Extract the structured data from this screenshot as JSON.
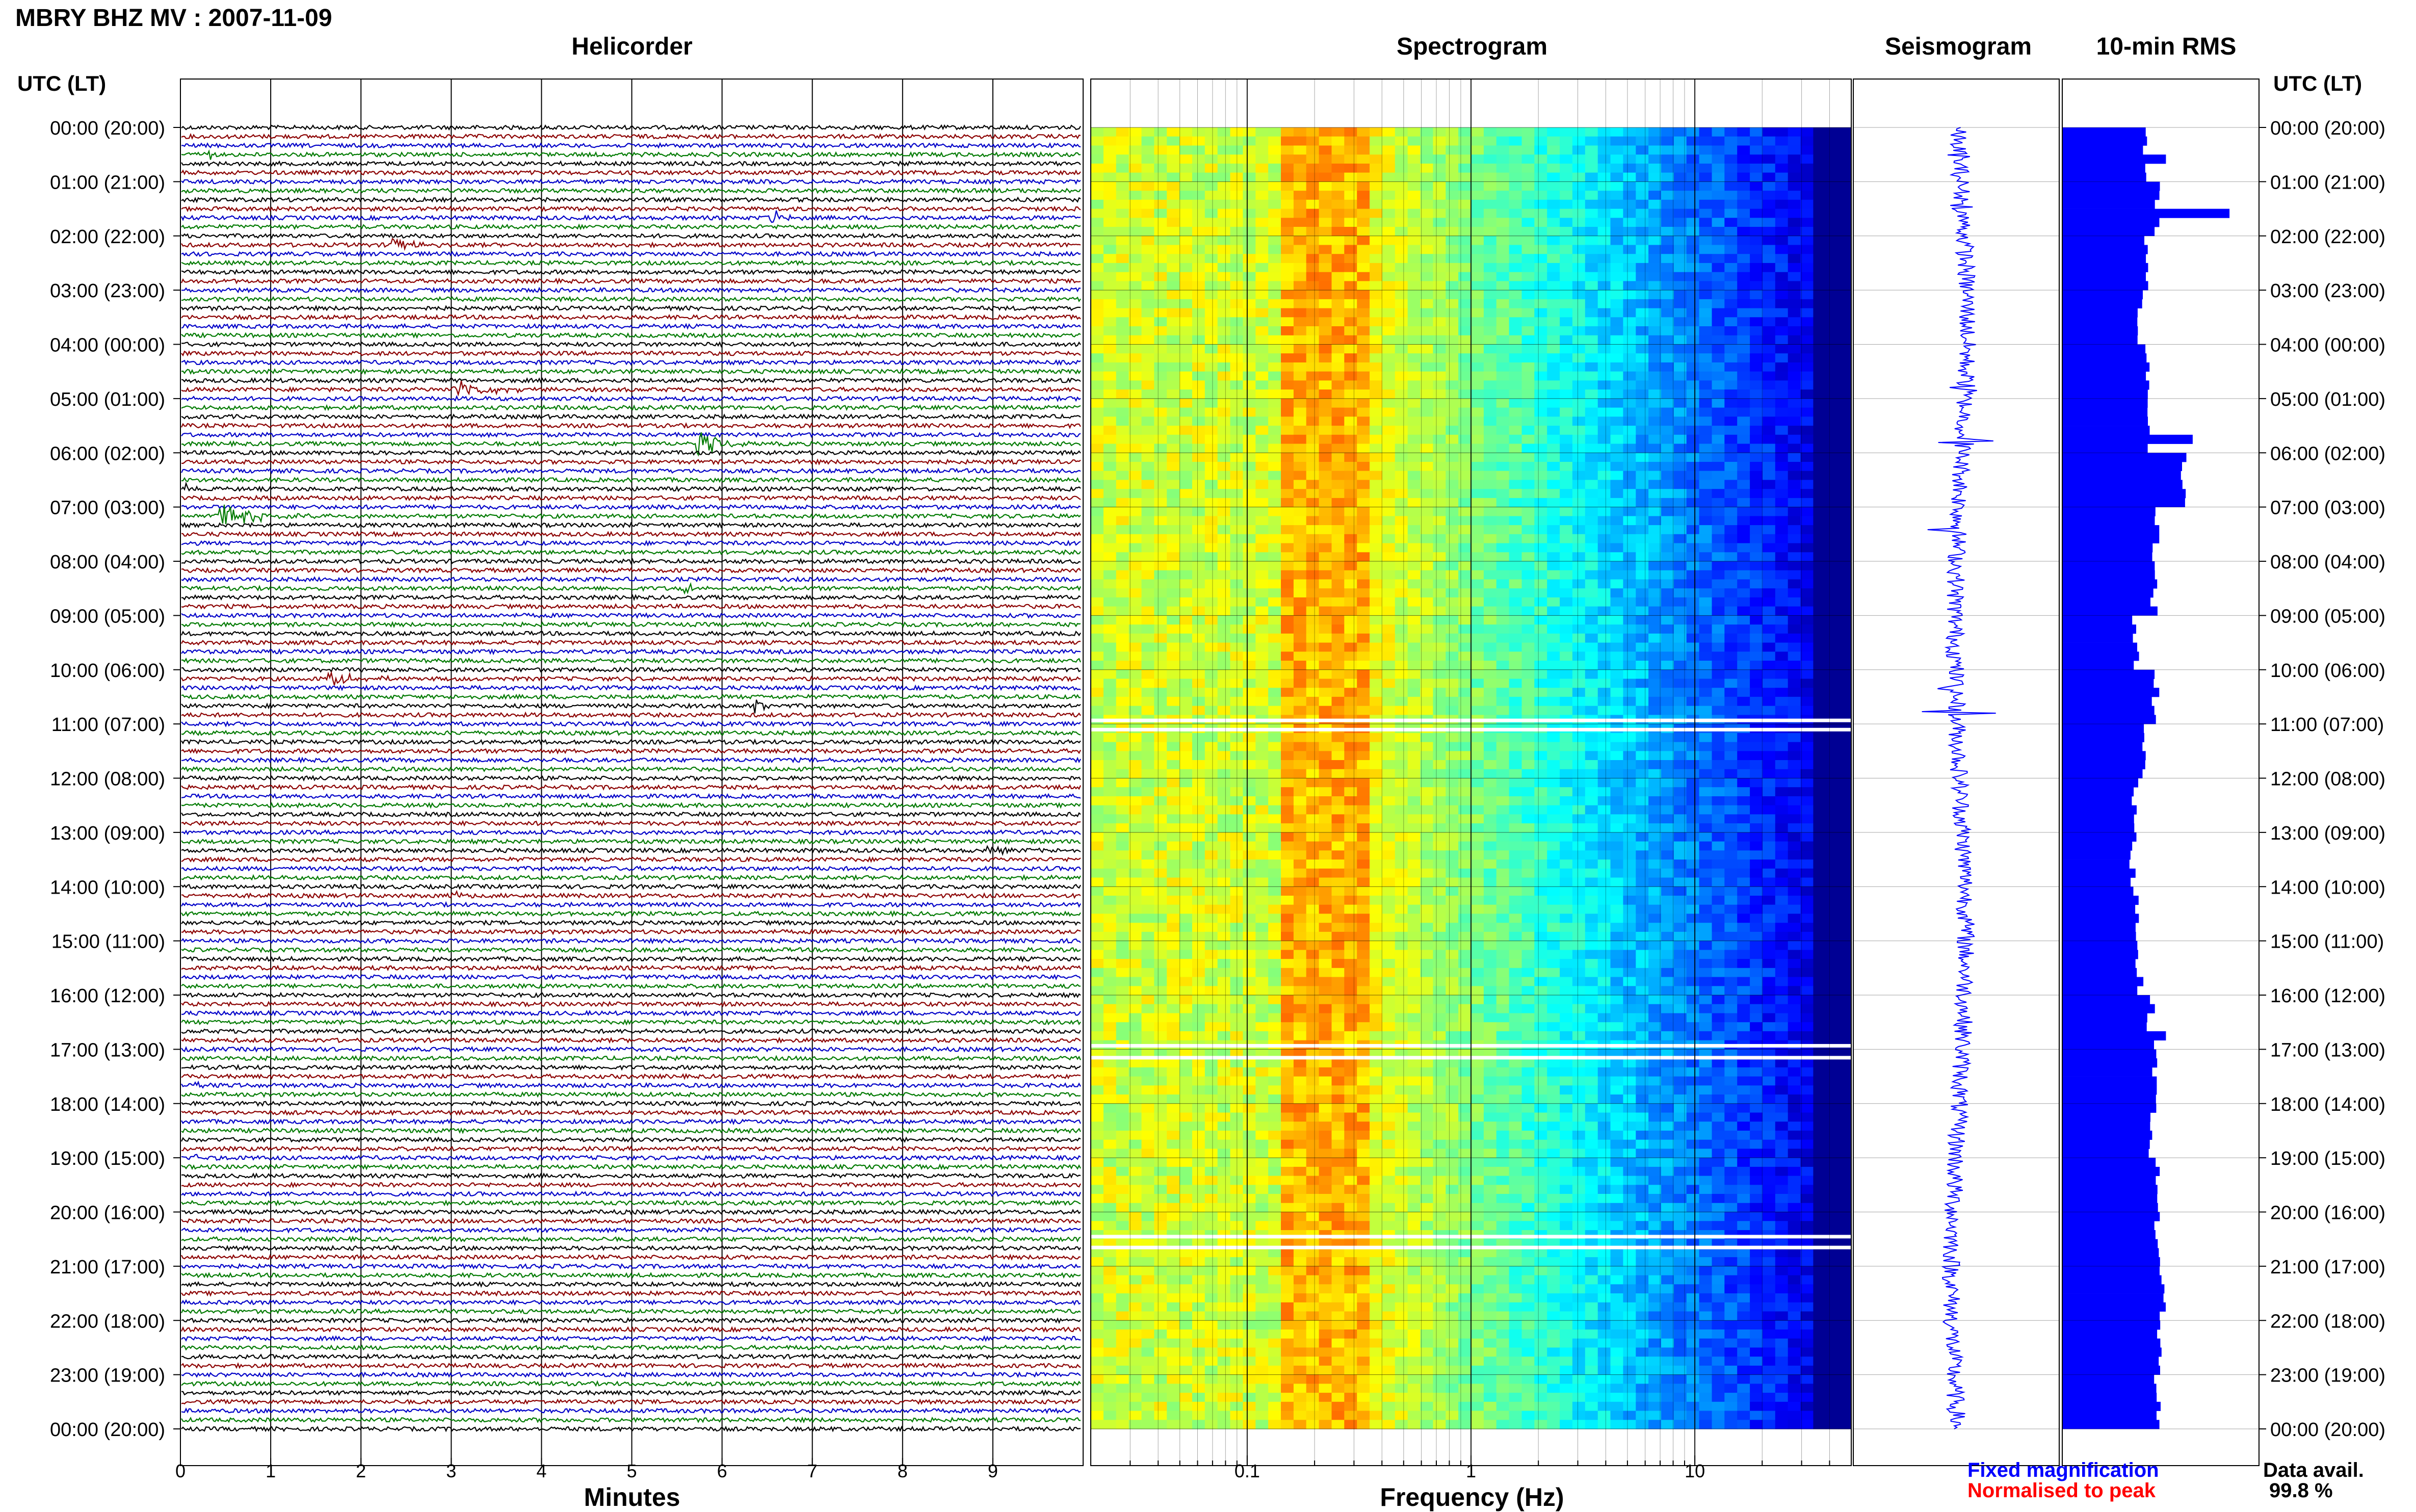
{
  "title": "MBRY BHZ MV : 2007-11-09",
  "panels": {
    "helicorder": "Helicorder",
    "spectrogram": "Spectrogram",
    "seismogram": "Seismogram",
    "rms": "10-min RMS"
  },
  "time_axis_label": "UTC (LT)",
  "x_labels": {
    "helicorder": "Minutes",
    "spectrogram": "Frequency (Hz)"
  },
  "legend": {
    "fixed": "Fixed magnification",
    "normalised": "Normalised to peak",
    "fixed_color": "#0000ff",
    "normalised_color": "#ff0000"
  },
  "data_availability": {
    "label": "Data avail.",
    "value": "99.8 %"
  },
  "colors": {
    "trace_cycle": [
      "#000000",
      "#8b0000",
      "#0000c8",
      "#007a00"
    ],
    "rms_bar": "#0000ff",
    "spectrogram_low": "#00007a",
    "spectrogram_high": "#ffff00"
  },
  "chart_data": [
    {
      "type": "line",
      "name": "Helicorder",
      "xlabel": "Minutes",
      "xlim": [
        0,
        10
      ],
      "x_ticks": [
        0,
        1,
        2,
        3,
        4,
        5,
        6,
        7,
        8,
        9
      ],
      "rows_per_hour": 6,
      "row_minutes": 10,
      "hour_labels": [
        "00:00 (20:00)",
        "01:00 (21:00)",
        "02:00 (22:00)",
        "03:00 (23:00)",
        "04:00 (00:00)",
        "05:00 (01:00)",
        "06:00 (02:00)",
        "07:00 (03:00)",
        "08:00 (04:00)",
        "09:00 (05:00)",
        "10:00 (06:00)",
        "11:00 (07:00)",
        "12:00 (08:00)",
        "13:00 (09:00)",
        "14:00 (10:00)",
        "15:00 (11:00)",
        "16:00 (12:00)",
        "17:00 (13:00)",
        "18:00 (14:00)",
        "19:00 (15:00)",
        "20:00 (16:00)",
        "21:00 (17:00)",
        "22:00 (18:00)",
        "23:00 (19:00)",
        "00:00 (20:00)"
      ],
      "events": [
        {
          "row": 3,
          "minute": 0.3,
          "duration": 0.2,
          "amp": 0.6
        },
        {
          "row": 10,
          "minute": 6.5,
          "duration": 0.5,
          "amp": 0.8
        },
        {
          "row": 13,
          "minute": 2.3,
          "duration": 0.9,
          "amp": 0.6
        },
        {
          "row": 29,
          "minute": 3.0,
          "duration": 1.3,
          "amp": 0.7
        },
        {
          "row": 35,
          "minute": 5.7,
          "duration": 0.8,
          "amp": 1.2
        },
        {
          "row": 40,
          "minute": 0.0,
          "duration": 0.3,
          "amp": 0.6
        },
        {
          "row": 43,
          "minute": 0.4,
          "duration": 1.3,
          "amp": 1.0
        },
        {
          "row": 51,
          "minute": 5.5,
          "duration": 0.8,
          "amp": 0.4
        },
        {
          "row": 61,
          "minute": 1.6,
          "duration": 1.1,
          "amp": 0.6
        },
        {
          "row": 64,
          "minute": 6.3,
          "duration": 0.3,
          "amp": 1.2
        },
        {
          "row": 80,
          "minute": 8.9,
          "duration": 0.7,
          "amp": 0.4
        },
        {
          "row": 85,
          "minute": 3.0,
          "duration": 0.4,
          "amp": 0.4
        },
        {
          "row": 106,
          "minute": 0.0,
          "duration": 0.9,
          "amp": 0.3
        },
        {
          "row": 114,
          "minute": 0.1,
          "duration": 0.5,
          "amp": 0.3
        }
      ]
    },
    {
      "type": "heatmap",
      "name": "Spectrogram",
      "xlabel": "Frequency (Hz)",
      "x_scale": "log",
      "x_ticks": [
        0.1,
        1,
        10
      ],
      "x_ticklabels": [
        "0.1",
        "1",
        "10"
      ],
      "xlim": [
        0.02,
        50
      ],
      "gap_hours": [
        10.93,
        11.1,
        16.93,
        17.15,
        20.45,
        20.65
      ],
      "colormap": "jet"
    },
    {
      "type": "line",
      "name": "Seismogram",
      "spikes": [
        {
          "hour": 0.5,
          "amp": 0.35
        },
        {
          "hour": 1.5,
          "amp": 0.3
        },
        {
          "hour": 4.8,
          "amp": 0.5
        },
        {
          "hour": 5.8,
          "amp": 1.0
        },
        {
          "hour": 7.4,
          "amp": 0.5
        },
        {
          "hour": 10.35,
          "amp": 0.4
        },
        {
          "hour": 10.8,
          "amp": 0.9
        }
      ]
    },
    {
      "type": "bar",
      "name": "10-min RMS",
      "orientation": "horizontal",
      "bar_interval_minutes": 10,
      "hourly_rms": [
        0.5,
        0.56,
        0.5,
        0.46,
        0.5,
        0.53,
        0.72,
        0.54,
        0.55,
        0.44,
        0.55,
        0.5,
        0.43,
        0.42,
        0.45,
        0.46,
        0.53,
        0.56,
        0.54,
        0.56,
        0.57,
        0.6,
        0.58,
        0.57
      ],
      "peaks": [
        {
          "hour": 0.6,
          "value": 0.62
        },
        {
          "hour": 1.6,
          "value": 1.0
        },
        {
          "hour": 5.8,
          "value": 0.78
        },
        {
          "hour": 7.5,
          "value": 0.58
        },
        {
          "hour": 10.4,
          "value": 0.58
        },
        {
          "hour": 16.8,
          "value": 0.62
        }
      ]
    }
  ]
}
